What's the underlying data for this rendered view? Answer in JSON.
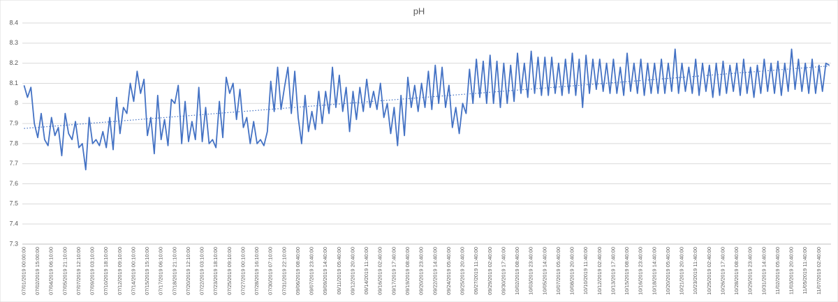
{
  "chart_data": {
    "type": "line",
    "title": "pH",
    "categories": [
      "07/01/2019 00:00:00",
      null,
      null,
      null,
      "07/02/2019 15:00:00",
      null,
      null,
      null,
      "07/04/2019 06:10:00",
      null,
      null,
      null,
      "07/05/2019 21:10:00",
      null,
      null,
      null,
      "07/07/2019 12:10:00",
      null,
      null,
      null,
      "07/09/2019 03:10:00",
      null,
      null,
      null,
      "07/10/2019 18:10:00",
      null,
      null,
      null,
      "07/12/2019 09:10:00",
      null,
      null,
      null,
      "07/14/2019 00:10:00",
      null,
      null,
      null,
      "07/15/2019 15:10:00",
      null,
      null,
      null,
      "07/17/2019 06:10:00",
      null,
      null,
      null,
      "07/18/2019 21:10:00",
      null,
      null,
      null,
      "07/20/2019 12:10:00",
      null,
      null,
      null,
      "07/22/2019 03:10:00",
      null,
      null,
      null,
      "07/23/2019 18:10:00",
      null,
      null,
      null,
      "07/25/2019 09:10:00",
      null,
      null,
      null,
      "07/27/2019 00:10:00",
      null,
      null,
      null,
      "07/28/2019 16:10:00",
      null,
      null,
      null,
      "07/30/2019 07:10:00",
      null,
      null,
      null,
      "07/31/2019 22:10:00",
      null,
      null,
      null,
      "09/06/2019 08:40:00",
      null,
      null,
      null,
      "09/07/2019 23:40:00",
      null,
      null,
      null,
      "09/09/2019 14:40:00",
      null,
      null,
      null,
      "09/11/2019 05:40:00",
      null,
      null,
      null,
      "09/12/2019 20:40:00",
      null,
      null,
      null,
      "09/14/2019 11:40:00",
      null,
      null,
      null,
      "09/16/2019 02:40:00",
      null,
      null,
      null,
      "09/17/2019 17:40:00",
      null,
      null,
      null,
      "09/19/2019 08:40:00",
      null,
      null,
      null,
      "09/20/2019 23:40:00",
      null,
      null,
      null,
      "09/22/2019 14:40:00",
      null,
      null,
      null,
      "09/24/2019 05:40:00",
      null,
      null,
      null,
      "09/25/2019 20:40:00",
      null,
      null,
      null,
      "09/27/2019 11:40:00",
      null,
      null,
      null,
      "09/29/2019 02:40:00",
      null,
      null,
      null,
      "09/30/2019 17:40:00",
      null,
      null,
      null,
      "10/02/2019 08:40:00",
      null,
      null,
      null,
      "10/03/2019 23:40:00",
      null,
      null,
      null,
      "10/05/2019 14:40:00",
      null,
      null,
      null,
      "10/07/2019 05:40:00",
      null,
      null,
      null,
      "10/08/2019 20:40:00",
      null,
      null,
      null,
      "10/10/2019 11:40:00",
      null,
      null,
      null,
      "10/12/2019 02:40:00",
      null,
      null,
      null,
      "10/13/2019 17:40:00",
      null,
      null,
      null,
      "10/15/2019 08:40:00",
      null,
      null,
      null,
      "10/16/2019 23:40:00",
      null,
      null,
      null,
      "10/18/2019 14:40:00",
      null,
      null,
      null,
      "10/20/2019 05:40:00",
      null,
      null,
      null,
      "10/21/2019 20:40:00",
      null,
      null,
      null,
      "10/23/2019 11:40:00",
      null,
      null,
      null,
      "10/25/2019 02:40:00",
      null,
      null,
      null,
      "10/26/2019 17:40:00",
      null,
      null,
      null,
      "10/28/2019 08:40:00",
      null,
      null,
      null,
      "10/29/2019 23:40:00",
      null,
      null,
      null,
      "10/31/2019 14:40:00",
      null,
      null,
      null,
      "11/02/2019 05:40:00",
      null,
      null,
      null,
      "11/03/2019 20:40:00",
      null,
      null,
      null,
      "11/05/2019 11:40:00",
      null,
      null,
      null,
      "11/07/2019 02:40:00",
      null,
      null,
      null
    ],
    "series": [
      {
        "color": "#4472c4",
        "values": [
          8.09,
          8.03,
          8.08,
          7.9,
          7.83,
          7.95,
          7.82,
          7.79,
          7.93,
          7.84,
          7.88,
          7.74,
          7.95,
          7.85,
          7.82,
          7.91,
          7.78,
          7.8,
          7.67,
          7.93,
          7.8,
          7.82,
          7.79,
          7.86,
          7.78,
          7.93,
          7.77,
          8.03,
          7.85,
          7.98,
          7.95,
          8.1,
          8.01,
          8.16,
          8.05,
          8.12,
          7.84,
          7.93,
          7.75,
          8.04,
          7.82,
          7.92,
          7.79,
          8.02,
          8.0,
          8.09,
          7.8,
          8.01,
          7.81,
          7.91,
          7.82,
          8.08,
          7.81,
          7.98,
          7.8,
          7.82,
          7.78,
          8.01,
          7.83,
          8.13,
          8.05,
          8.1,
          7.92,
          8.07,
          7.88,
          7.93,
          7.8,
          7.91,
          7.8,
          7.82,
          7.79,
          7.86,
          8.11,
          7.96,
          8.18,
          7.97,
          8.08,
          8.18,
          7.95,
          8.16,
          7.93,
          7.8,
          8.04,
          7.86,
          7.96,
          7.87,
          8.06,
          7.9,
          8.06,
          7.95,
          8.18,
          7.98,
          8.14,
          7.96,
          8.08,
          7.86,
          8.06,
          7.92,
          8.08,
          7.96,
          8.12,
          7.98,
          8.06,
          7.97,
          8.1,
          7.93,
          8.0,
          7.85,
          7.98,
          7.79,
          8.04,
          7.84,
          8.13,
          7.98,
          8.09,
          7.96,
          8.1,
          7.98,
          8.16,
          7.97,
          8.19,
          8.0,
          8.18,
          7.98,
          8.09,
          7.88,
          7.98,
          7.85,
          8.0,
          7.95,
          8.17,
          8.0,
          8.22,
          8.03,
          8.21,
          8.0,
          8.24,
          8.0,
          8.21,
          7.98,
          8.2,
          8.0,
          8.19,
          8.01,
          8.25,
          8.05,
          8.2,
          8.03,
          8.26,
          8.05,
          8.23,
          8.04,
          8.23,
          8.04,
          8.23,
          8.05,
          8.2,
          8.04,
          8.22,
          8.05,
          8.25,
          8.04,
          8.22,
          7.98,
          8.24,
          8.05,
          8.22,
          8.07,
          8.22,
          8.06,
          8.2,
          8.05,
          8.22,
          8.05,
          8.18,
          8.04,
          8.25,
          8.06,
          8.2,
          8.05,
          8.22,
          8.04,
          8.2,
          8.05,
          8.2,
          8.05,
          8.22,
          8.05,
          8.2,
          8.06,
          8.27,
          8.05,
          8.2,
          8.06,
          8.18,
          8.05,
          8.22,
          8.04,
          8.2,
          8.06,
          8.19,
          8.03,
          8.2,
          8.04,
          8.21,
          8.05,
          8.19,
          8.06,
          8.2,
          8.04,
          8.22,
          8.05,
          8.18,
          8.03,
          8.19,
          8.05,
          8.22,
          8.06,
          8.2,
          8.05,
          8.21,
          8.04,
          8.2,
          8.06,
          8.27,
          8.07,
          8.22,
          8.06,
          8.2,
          8.05,
          8.22,
          8.05,
          8.19,
          8.06,
          8.2,
          8.19
        ]
      }
    ],
    "ylim": [
      7.3,
      8.4
    ],
    "yticks": [
      7.3,
      7.4,
      7.5,
      7.6,
      7.7,
      7.8,
      7.9,
      8,
      8.1,
      8.2,
      8.3,
      8.4
    ],
    "grid": true,
    "trendline": true
  }
}
